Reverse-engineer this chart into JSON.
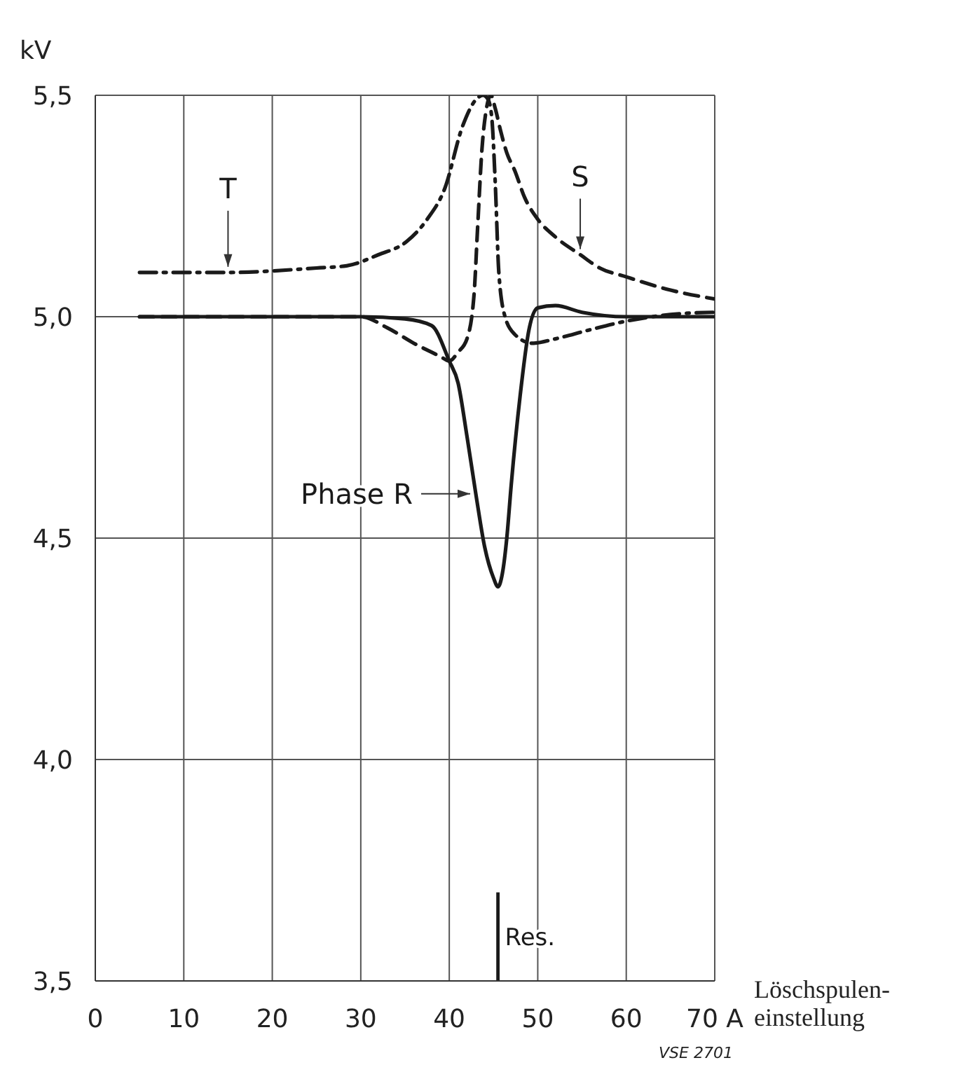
{
  "chart_data": {
    "type": "line",
    "ylabel": "kV",
    "xlabel": "Löschspulen-einstellung",
    "xlim": [
      0,
      70
    ],
    "xticks": [
      0,
      10,
      20,
      30,
      40,
      50,
      60,
      {
        "value": 70,
        "label": "70 A"
      }
    ],
    "ylim": [
      3.5,
      5.5
    ],
    "yticks": [
      {
        "value": 3.5,
        "label": "3,5"
      },
      {
        "value": 4.0,
        "label": "4,0"
      },
      {
        "value": 4.5,
        "label": "4,5"
      },
      {
        "value": 5.0,
        "label": "5,0"
      },
      {
        "value": 5.5,
        "label": "5,5"
      }
    ],
    "grid": true,
    "legend": false,
    "marker": "none",
    "series": [
      {
        "name": "Phase R",
        "color": "#1a1a1a",
        "line_style": "solid",
        "x": [
          5,
          30,
          35,
          38,
          40,
          41,
          42,
          43,
          44,
          45,
          45.5,
          46,
          46.5,
          47,
          48,
          49,
          50,
          52,
          55,
          60,
          70
        ],
        "values": [
          5.0,
          5.0,
          4.995,
          4.98,
          4.9,
          4.85,
          4.73,
          4.6,
          4.48,
          4.41,
          4.39,
          4.42,
          4.5,
          4.62,
          4.82,
          4.97,
          5.02,
          5.025,
          5.01,
          5.0,
          5.0
        ]
      },
      {
        "name": "S",
        "color": "#1a1a1a",
        "line_style": "dashed",
        "x": [
          5,
          30,
          33,
          36,
          39,
          40,
          41,
          42,
          42.8,
          43.2,
          43.7,
          44.2,
          44.7,
          45.2,
          45.8,
          46.5,
          47.4,
          48.5,
          50,
          52,
          54.8,
          57,
          60,
          65,
          70
        ],
        "values": [
          5.0,
          5.0,
          4.975,
          4.94,
          4.91,
          4.9,
          4.92,
          4.95,
          5.05,
          5.2,
          5.38,
          5.47,
          5.5,
          5.47,
          5.42,
          5.37,
          5.33,
          5.27,
          5.22,
          5.18,
          5.14,
          5.11,
          5.09,
          5.06,
          5.04
        ]
      },
      {
        "name": "T",
        "color": "#1a1a1a",
        "line_style": "dashdot",
        "x": [
          5,
          15,
          25,
          28.4,
          32,
          35.2,
          37.5,
          39.5,
          41.5,
          43,
          43.8,
          44.4,
          44.8,
          45.2,
          45.6,
          46.3,
          47.4,
          49.4,
          52,
          55.8,
          60,
          65,
          70
        ],
        "values": [
          5.1,
          5.1,
          5.11,
          5.115,
          5.14,
          5.17,
          5.22,
          5.29,
          5.43,
          5.49,
          5.5,
          5.49,
          5.45,
          5.3,
          5.1,
          5.0,
          4.96,
          4.94,
          4.95,
          4.97,
          4.99,
          5.005,
          5.01
        ]
      }
    ],
    "ref_lines": [
      {
        "axis": "x",
        "value": 45.5,
        "label": "Res."
      }
    ],
    "annotations": [
      "VSE 2701"
    ]
  }
}
